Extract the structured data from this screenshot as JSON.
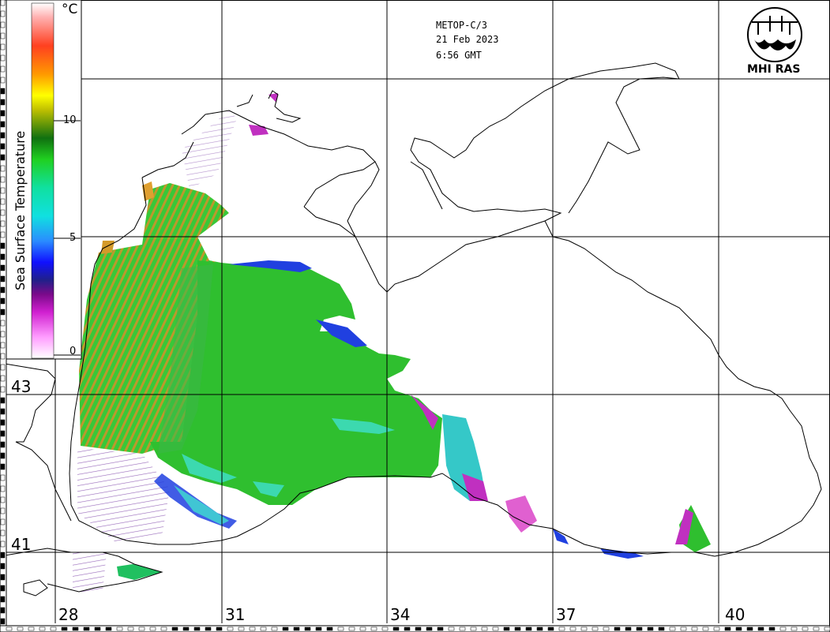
{
  "header": {
    "satellite": "METOP-C/3",
    "date": "21 Feb 2023",
    "time": "6:56 GMT"
  },
  "logo": {
    "text": "MHI RAS"
  },
  "colorbar": {
    "title": "Sea Surface Temperature",
    "unit": "°C",
    "ticks": [
      "0",
      "5",
      "10"
    ]
  },
  "lat_labels": [
    "43",
    "41"
  ],
  "lon_labels": [
    "28",
    "31",
    "34",
    "37",
    "40"
  ],
  "colors": {
    "sea_main": "#2fbf2f",
    "sea_west": "#d39a2a",
    "coast_cold": "#2040e0",
    "front": "#c030c0"
  }
}
